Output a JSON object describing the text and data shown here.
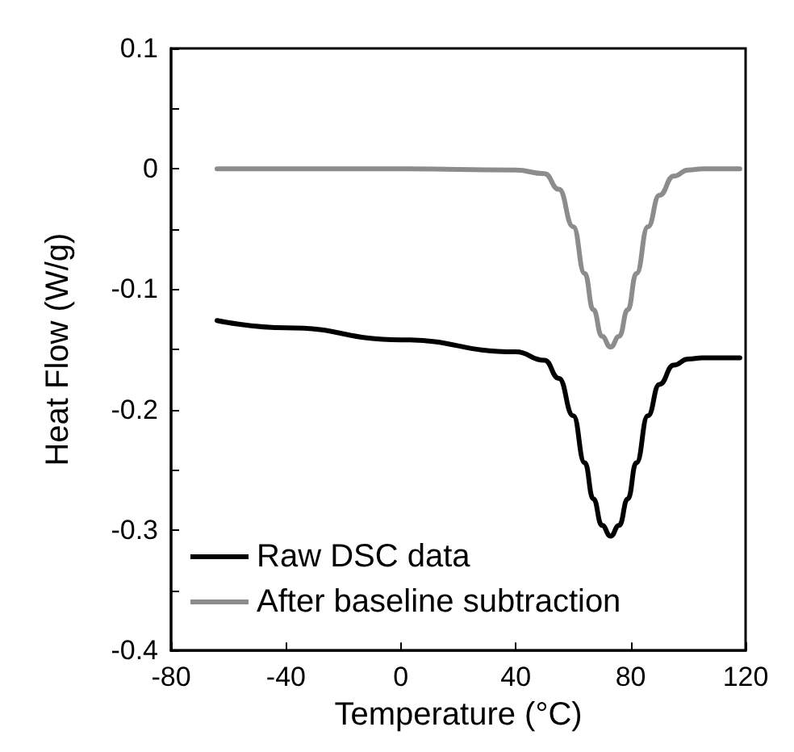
{
  "chart_data": {
    "type": "line",
    "xlabel": "Temperature (°C)",
    "ylabel": "Heat Flow (W/g)",
    "xlim": [
      -80,
      120
    ],
    "xticks": [
      -80,
      -40,
      0,
      40,
      80,
      120
    ],
    "ylim": [
      -0.4,
      0.1
    ],
    "yticks": [
      -0.4,
      {
        "value": -0.35,
        "label": null
      },
      -0.3,
      {
        "value": -0.25,
        "label": null
      },
      -0.2,
      {
        "value": -0.15,
        "label": null
      },
      -0.1,
      {
        "value": -0.05,
        "label": null
      },
      0,
      {
        "value": 0.05,
        "label": null
      },
      0.1
    ],
    "grid": false,
    "legend": "bottom left",
    "marker": "none",
    "line_style": "solid",
    "x": [
      -64,
      -40,
      0,
      40,
      50,
      55,
      60,
      64,
      67,
      70,
      73,
      76,
      79,
      82,
      86,
      90,
      95,
      100,
      105,
      110,
      118
    ],
    "series": [
      {
        "name": "Raw DSC data",
        "color": "#000000",
        "values": [
          -0.126,
          -0.132,
          -0.142,
          -0.152,
          -0.159,
          -0.174,
          -0.205,
          -0.244,
          -0.274,
          -0.296,
          -0.305,
          -0.296,
          -0.274,
          -0.244,
          -0.205,
          -0.179,
          -0.163,
          -0.158,
          -0.157,
          -0.157,
          -0.157
        ]
      },
      {
        "name": "After baseline subtraction",
        "color": "#8c8c8c",
        "values": [
          0,
          0,
          0,
          -0.001,
          -0.004,
          -0.017,
          -0.048,
          -0.087,
          -0.117,
          -0.139,
          -0.148,
          -0.139,
          -0.117,
          -0.087,
          -0.048,
          -0.022,
          -0.006,
          -0.001,
          0,
          0,
          0
        ]
      }
    ]
  }
}
